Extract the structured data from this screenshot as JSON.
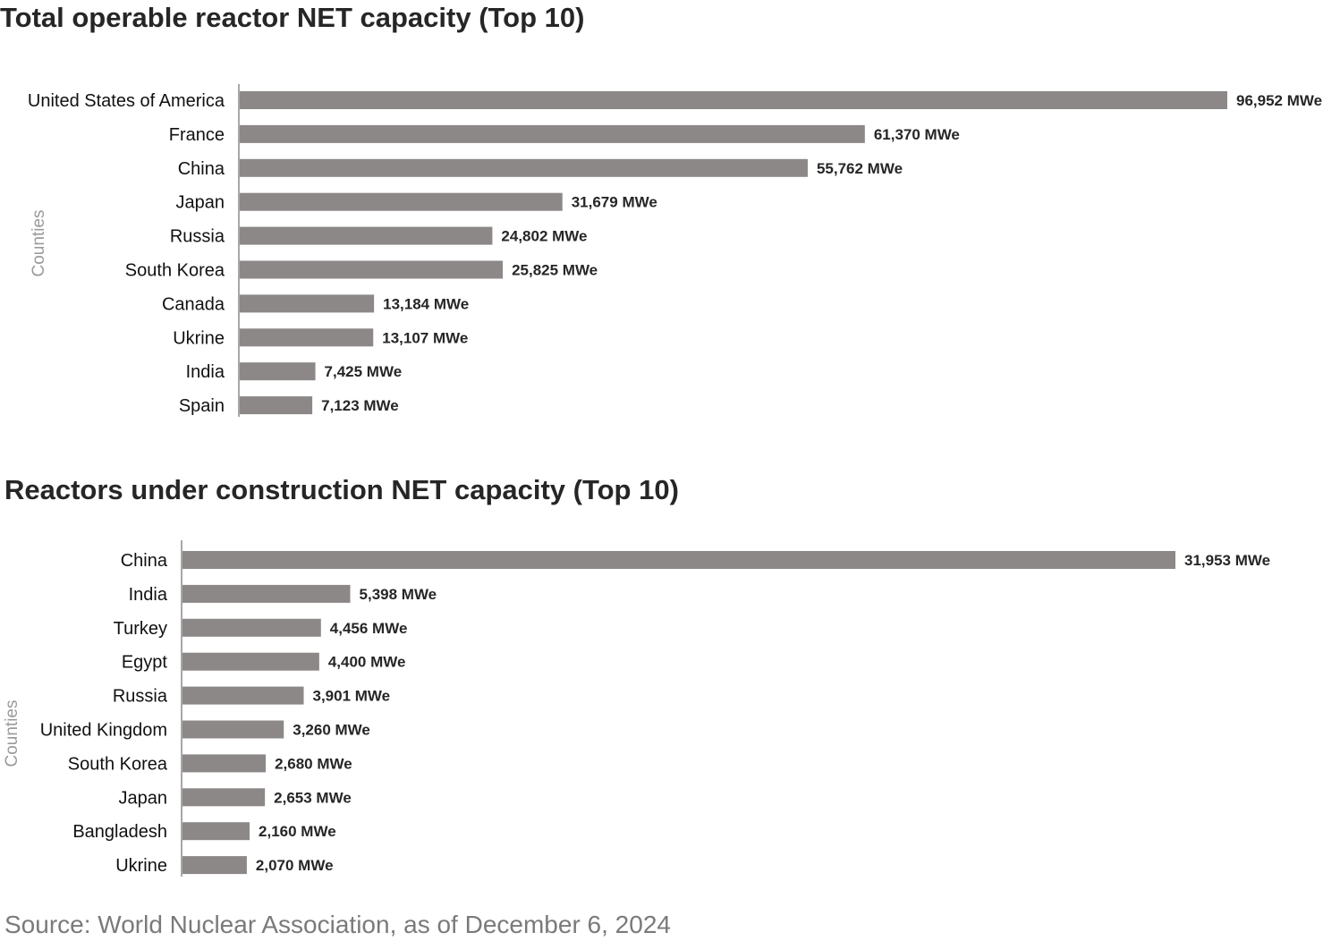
{
  "source": "Source: World Nuclear Association, as of December 6, 2024",
  "chart_data": [
    {
      "type": "bar",
      "orientation": "horizontal",
      "title": "Total operable reactor NET capacity (Top 10)",
      "ylabel": "Counties",
      "xlabel": "",
      "unit": "MWe",
      "grid": false,
      "categories": [
        "United States of America",
        "France",
        "China",
        "Japan",
        "Russia",
        "South Korea",
        "Canada",
        "Ukrine",
        "India",
        "Spain"
      ],
      "values": [
        96952,
        61370,
        55762,
        31679,
        24802,
        25825,
        13184,
        13107,
        7425,
        7123
      ],
      "value_labels": [
        "96,952 MWe",
        "61,370 MWe",
        "55,762 MWe",
        "31,679 MWe",
        "24,802 MWe",
        "25,825 MWe",
        "13,184 MWe",
        "13,107 MWe",
        "7,425 MWe",
        "7,123 MWe"
      ]
    },
    {
      "type": "bar",
      "orientation": "horizontal",
      "title": "Reactors under construction NET capacity (Top 10)",
      "ylabel": "Counties",
      "xlabel": "",
      "unit": "MWe",
      "grid": false,
      "categories": [
        "China",
        "India",
        "Turkey",
        "Egypt",
        "Russia",
        "United Kingdom",
        "South Korea",
        "Japan",
        "Bangladesh",
        "Ukrine"
      ],
      "values": [
        31953,
        5398,
        4456,
        4400,
        3901,
        3260,
        2680,
        2653,
        2160,
        2070
      ],
      "value_labels": [
        "31,953 MWe",
        "5,398 MWe",
        "4,456 MWe",
        "4,400 MWe",
        "3,901 MWe",
        "3,260 MWe",
        "2,680 MWe",
        "2,653 MWe",
        "2,160 MWe",
        "2,070 MWe"
      ]
    }
  ]
}
